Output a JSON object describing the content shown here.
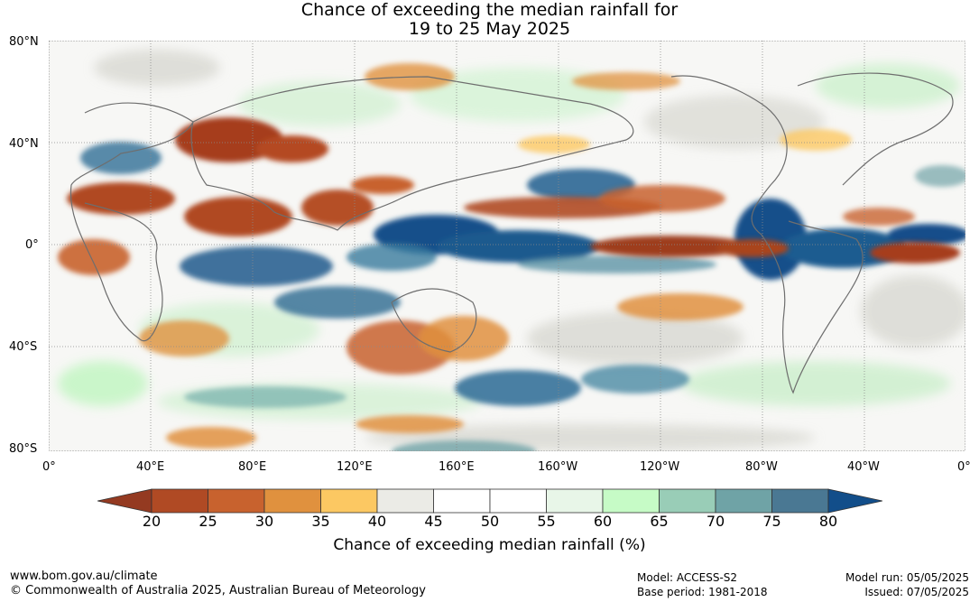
{
  "title": {
    "line1": "Chance of exceeding the median rainfall for",
    "line2": "19 to 25 May 2025"
  },
  "lat_labels": [
    "80°N",
    "40°N",
    "0°",
    "40°S",
    "80°S"
  ],
  "lon_labels": [
    "0°",
    "40°E",
    "80°E",
    "120°E",
    "160°E",
    "160°W",
    "120°W",
    "80°W",
    "40°W",
    "0°"
  ],
  "colorbar": {
    "ticks": [
      "20",
      "25",
      "30",
      "35",
      "40",
      "45",
      "50",
      "55",
      "60",
      "65",
      "70",
      "75",
      "80"
    ],
    "colors": [
      "#b04a24",
      "#c8622e",
      "#e0913e",
      "#fcc862",
      "#ebebe6",
      "#ffffff",
      "#ffffff",
      "#e8f6e8",
      "#c6fbc6",
      "#99cdb7",
      "#6fa3a6",
      "#4a7893"
    ],
    "low_color": "#943a21",
    "high_color": "#124e8a",
    "label": "Chance of exceeding median rainfall (%)"
  },
  "footer": {
    "url": "www.bom.gov.au/climate",
    "copyright": "© Commonwealth of Australia 2025, Australian Bureau of Meteorology",
    "model": "Model: ACCESS-S2",
    "base_period": "Base period: 1981-2018",
    "model_run": "Model run: 05/05/2025",
    "issued": "Issued: 07/05/2025"
  }
}
